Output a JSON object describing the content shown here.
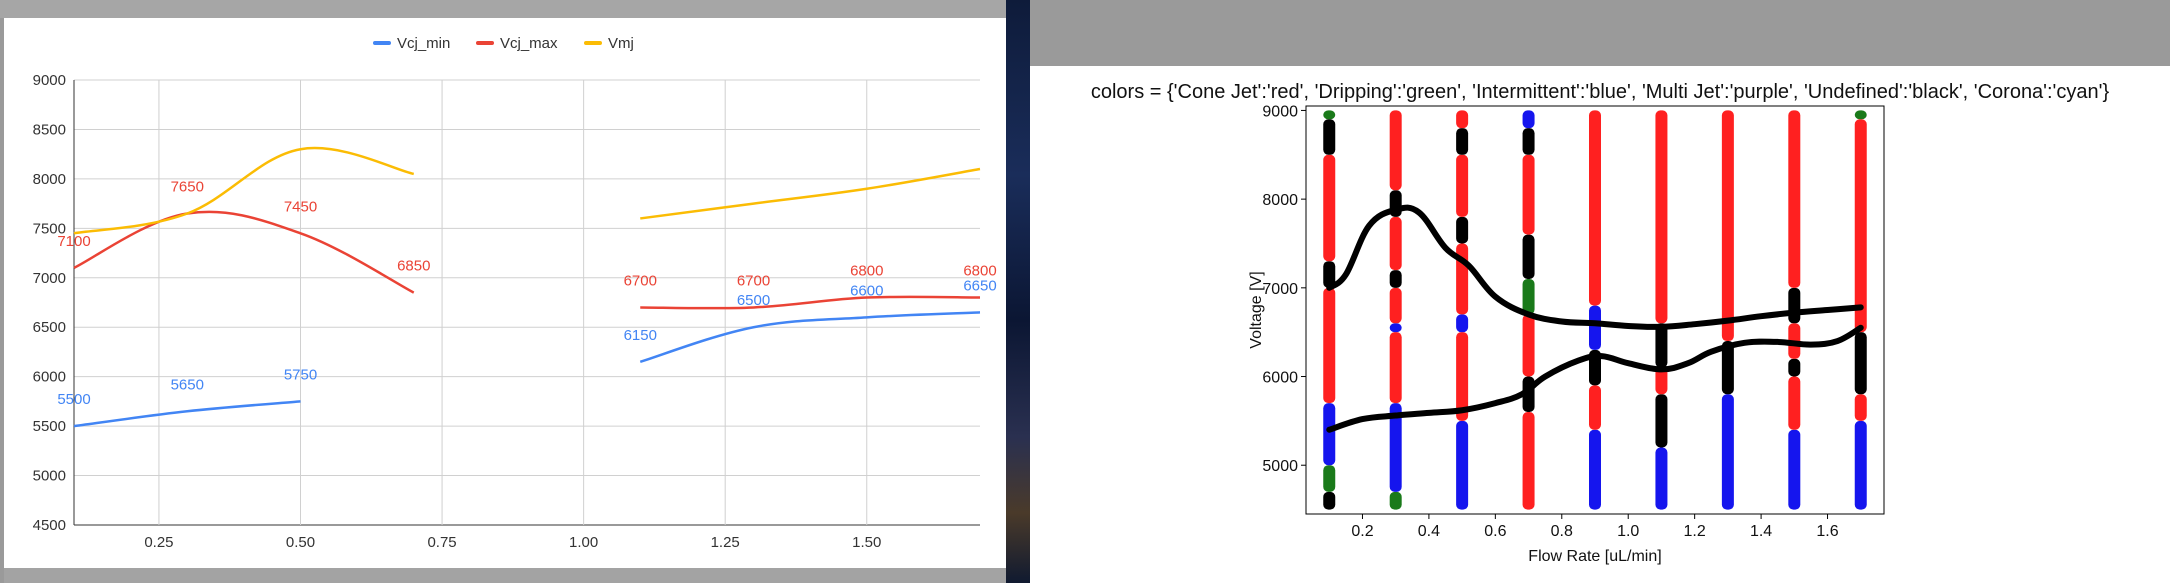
{
  "chart_data": [
    {
      "type": "line",
      "title": "",
      "xlabel": "",
      "ylabel": "",
      "xlim": [
        0.1,
        1.7
      ],
      "ylim": [
        4500,
        9000
      ],
      "xticks": [
        "0.25",
        "0.50",
        "0.75",
        "1.00",
        "1.25",
        "1.50"
      ],
      "yticks": [
        "4500",
        "5000",
        "5500",
        "6000",
        "6500",
        "7000",
        "7500",
        "8000",
        "8500",
        "9000"
      ],
      "legend_position": "top-center",
      "grid": true,
      "series": [
        {
          "name": "Vcj_min",
          "color": "#4285f4",
          "segments": [
            [
              {
                "x": 0.1,
                "y": 5500
              },
              {
                "x": 0.3,
                "y": 5650
              },
              {
                "x": 0.5,
                "y": 5750
              }
            ],
            [
              {
                "x": 1.1,
                "y": 6150
              },
              {
                "x": 1.3,
                "y": 6500
              },
              {
                "x": 1.5,
                "y": 6600
              },
              {
                "x": 1.7,
                "y": 6650
              }
            ]
          ],
          "labels": [
            {
              "x": 0.1,
              "y": 5500,
              "text": "5500"
            },
            {
              "x": 0.3,
              "y": 5650,
              "text": "5650"
            },
            {
              "x": 0.5,
              "y": 5750,
              "text": "5750"
            },
            {
              "x": 1.1,
              "y": 6150,
              "text": "6150"
            },
            {
              "x": 1.3,
              "y": 6500,
              "text": "6500"
            },
            {
              "x": 1.5,
              "y": 6600,
              "text": "6600"
            },
            {
              "x": 1.7,
              "y": 6650,
              "text": "6650"
            }
          ]
        },
        {
          "name": "Vcj_max",
          "color": "#ea4335",
          "segments": [
            [
              {
                "x": 0.1,
                "y": 7100
              },
              {
                "x": 0.3,
                "y": 7650
              },
              {
                "x": 0.5,
                "y": 7450
              },
              {
                "x": 0.7,
                "y": 6850
              }
            ],
            [
              {
                "x": 1.1,
                "y": 6700
              },
              {
                "x": 1.3,
                "y": 6700
              },
              {
                "x": 1.5,
                "y": 6800
              },
              {
                "x": 1.7,
                "y": 6800
              }
            ]
          ],
          "labels": [
            {
              "x": 0.1,
              "y": 7100,
              "text": "7100"
            },
            {
              "x": 0.3,
              "y": 7650,
              "text": "7650"
            },
            {
              "x": 0.5,
              "y": 7450,
              "text": "7450"
            },
            {
              "x": 0.7,
              "y": 6850,
              "text": "6850"
            },
            {
              "x": 1.1,
              "y": 6700,
              "text": "6700"
            },
            {
              "x": 1.3,
              "y": 6700,
              "text": "6700"
            },
            {
              "x": 1.5,
              "y": 6800,
              "text": "6800"
            },
            {
              "x": 1.7,
              "y": 6800,
              "text": "6800"
            }
          ]
        },
        {
          "name": "Vmj",
          "color": "#fbbc04",
          "segments": [
            [
              {
                "x": 0.1,
                "y": 7450
              },
              {
                "x": 0.3,
                "y": 7650
              },
              {
                "x": 0.5,
                "y": 8300
              },
              {
                "x": 0.7,
                "y": 8050
              }
            ],
            [
              {
                "x": 1.1,
                "y": 7600
              },
              {
                "x": 1.3,
                "y": 7750
              },
              {
                "x": 1.5,
                "y": 7900
              },
              {
                "x": 1.7,
                "y": 8100
              }
            ]
          ],
          "labels": []
        }
      ]
    },
    {
      "type": "scatter",
      "title": "colors = {'Cone Jet':'red', 'Dripping':'green', 'Intermittent':'blue', 'Multi Jet':'purple', 'Undefined':'black', 'Corona':'cyan'}",
      "xlabel": "Flow Rate [uL/min]",
      "ylabel": "Voltage [V]",
      "xlim": [
        0.03,
        1.77
      ],
      "ylim": [
        4450,
        9050
      ],
      "xticks": [
        "0.2",
        "0.4",
        "0.6",
        "0.8",
        "1.0",
        "1.2",
        "1.4",
        "1.6"
      ],
      "yticks": [
        "5000",
        "6000",
        "7000",
        "8000",
        "9000"
      ],
      "grid": false,
      "flow_rates": [
        0.1,
        0.3,
        0.5,
        0.7,
        0.9,
        1.1,
        1.3,
        1.5,
        1.7
      ],
      "columns": [
        {
          "x": 0.1,
          "bands": [
            {
              "from": 4500,
              "to": 4700,
              "color": "black"
            },
            {
              "from": 4700,
              "to": 5000,
              "color": "green"
            },
            {
              "from": 5000,
              "to": 5700,
              "color": "blue"
            },
            {
              "from": 5700,
              "to": 7000,
              "color": "red"
            },
            {
              "from": 7000,
              "to": 7300,
              "color": "black"
            },
            {
              "from": 7300,
              "to": 8500,
              "color": "red"
            },
            {
              "from": 8500,
              "to": 8900,
              "color": "black"
            },
            {
              "from": 8900,
              "to": 9000,
              "color": "green"
            }
          ]
        },
        {
          "x": 0.3,
          "bands": [
            {
              "from": 4500,
              "to": 4700,
              "color": "green"
            },
            {
              "from": 4700,
              "to": 5700,
              "color": "blue"
            },
            {
              "from": 5700,
              "to": 6500,
              "color": "red"
            },
            {
              "from": 6500,
              "to": 6600,
              "color": "blue"
            },
            {
              "from": 6600,
              "to": 7000,
              "color": "red"
            },
            {
              "from": 7000,
              "to": 7200,
              "color": "black"
            },
            {
              "from": 7200,
              "to": 7800,
              "color": "red"
            },
            {
              "from": 7800,
              "to": 8100,
              "color": "black"
            },
            {
              "from": 8100,
              "to": 9000,
              "color": "red"
            }
          ]
        },
        {
          "x": 0.5,
          "bands": [
            {
              "from": 4500,
              "to": 5500,
              "color": "blue"
            },
            {
              "from": 5500,
              "to": 6500,
              "color": "red"
            },
            {
              "from": 6500,
              "to": 6700,
              "color": "blue"
            },
            {
              "from": 6700,
              "to": 7500,
              "color": "red"
            },
            {
              "from": 7500,
              "to": 7800,
              "color": "black"
            },
            {
              "from": 7800,
              "to": 8500,
              "color": "red"
            },
            {
              "from": 8500,
              "to": 8800,
              "color": "black"
            },
            {
              "from": 8800,
              "to": 9000,
              "color": "red"
            }
          ]
        },
        {
          "x": 0.7,
          "bands": [
            {
              "from": 4500,
              "to": 5600,
              "color": "red"
            },
            {
              "from": 5600,
              "to": 6000,
              "color": "black"
            },
            {
              "from": 6000,
              "to": 6700,
              "color": "red"
            },
            {
              "from": 6700,
              "to": 7100,
              "color": "green"
            },
            {
              "from": 7100,
              "to": 7600,
              "color": "black"
            },
            {
              "from": 7600,
              "to": 8500,
              "color": "red"
            },
            {
              "from": 8500,
              "to": 8800,
              "color": "black"
            },
            {
              "from": 8800,
              "to": 9000,
              "color": "blue"
            }
          ]
        },
        {
          "x": 0.9,
          "bands": [
            {
              "from": 4500,
              "to": 5400,
              "color": "blue"
            },
            {
              "from": 5400,
              "to": 5900,
              "color": "red"
            },
            {
              "from": 5900,
              "to": 6300,
              "color": "black"
            },
            {
              "from": 6300,
              "to": 6800,
              "color": "blue"
            },
            {
              "from": 6800,
              "to": 9000,
              "color": "red"
            }
          ]
        },
        {
          "x": 1.1,
          "bands": [
            {
              "from": 4500,
              "to": 5200,
              "color": "blue"
            },
            {
              "from": 5200,
              "to": 5800,
              "color": "black"
            },
            {
              "from": 5800,
              "to": 6100,
              "color": "red"
            },
            {
              "from": 6100,
              "to": 6600,
              "color": "black"
            },
            {
              "from": 6600,
              "to": 9000,
              "color": "red"
            }
          ]
        },
        {
          "x": 1.3,
          "bands": [
            {
              "from": 4500,
              "to": 5800,
              "color": "blue"
            },
            {
              "from": 5800,
              "to": 6400,
              "color": "black"
            },
            {
              "from": 6400,
              "to": 9000,
              "color": "red"
            }
          ]
        },
        {
          "x": 1.5,
          "bands": [
            {
              "from": 4500,
              "to": 5400,
              "color": "blue"
            },
            {
              "from": 5400,
              "to": 6000,
              "color": "red"
            },
            {
              "from": 6000,
              "to": 6200,
              "color": "black"
            },
            {
              "from": 6200,
              "to": 6600,
              "color": "red"
            },
            {
              "from": 6600,
              "to": 7000,
              "color": "black"
            },
            {
              "from": 7000,
              "to": 9000,
              "color": "red"
            }
          ]
        },
        {
          "x": 1.7,
          "bands": [
            {
              "from": 4500,
              "to": 5500,
              "color": "blue"
            },
            {
              "from": 5500,
              "to": 5800,
              "color": "red"
            },
            {
              "from": 5800,
              "to": 6500,
              "color": "black"
            },
            {
              "from": 6500,
              "to": 8900,
              "color": "red"
            },
            {
              "from": 8900,
              "to": 9000,
              "color": "green"
            }
          ]
        }
      ],
      "lines": [
        {
          "name": "upper boundary",
          "color": "black",
          "points": [
            [
              0.1,
              7000
            ],
            [
              0.15,
              7150
            ],
            [
              0.22,
              7700
            ],
            [
              0.3,
              7880
            ],
            [
              0.37,
              7850
            ],
            [
              0.45,
              7450
            ],
            [
              0.52,
              7250
            ],
            [
              0.6,
              6900
            ],
            [
              0.7,
              6700
            ],
            [
              0.8,
              6620
            ],
            [
              0.9,
              6600
            ],
            [
              1.0,
              6570
            ],
            [
              1.1,
              6560
            ],
            [
              1.2,
              6590
            ],
            [
              1.3,
              6630
            ],
            [
              1.4,
              6680
            ],
            [
              1.5,
              6720
            ],
            [
              1.6,
              6750
            ],
            [
              1.7,
              6780
            ]
          ]
        },
        {
          "name": "lower boundary",
          "color": "black",
          "points": [
            [
              0.1,
              5400
            ],
            [
              0.2,
              5520
            ],
            [
              0.3,
              5560
            ],
            [
              0.4,
              5590
            ],
            [
              0.5,
              5620
            ],
            [
              0.6,
              5700
            ],
            [
              0.68,
              5800
            ],
            [
              0.75,
              6000
            ],
            [
              0.85,
              6180
            ],
            [
              0.92,
              6230
            ],
            [
              1.0,
              6150
            ],
            [
              1.1,
              6080
            ],
            [
              1.18,
              6150
            ],
            [
              1.25,
              6280
            ],
            [
              1.35,
              6380
            ],
            [
              1.45,
              6390
            ],
            [
              1.55,
              6360
            ],
            [
              1.63,
              6400
            ],
            [
              1.7,
              6550
            ]
          ]
        }
      ]
    }
  ]
}
